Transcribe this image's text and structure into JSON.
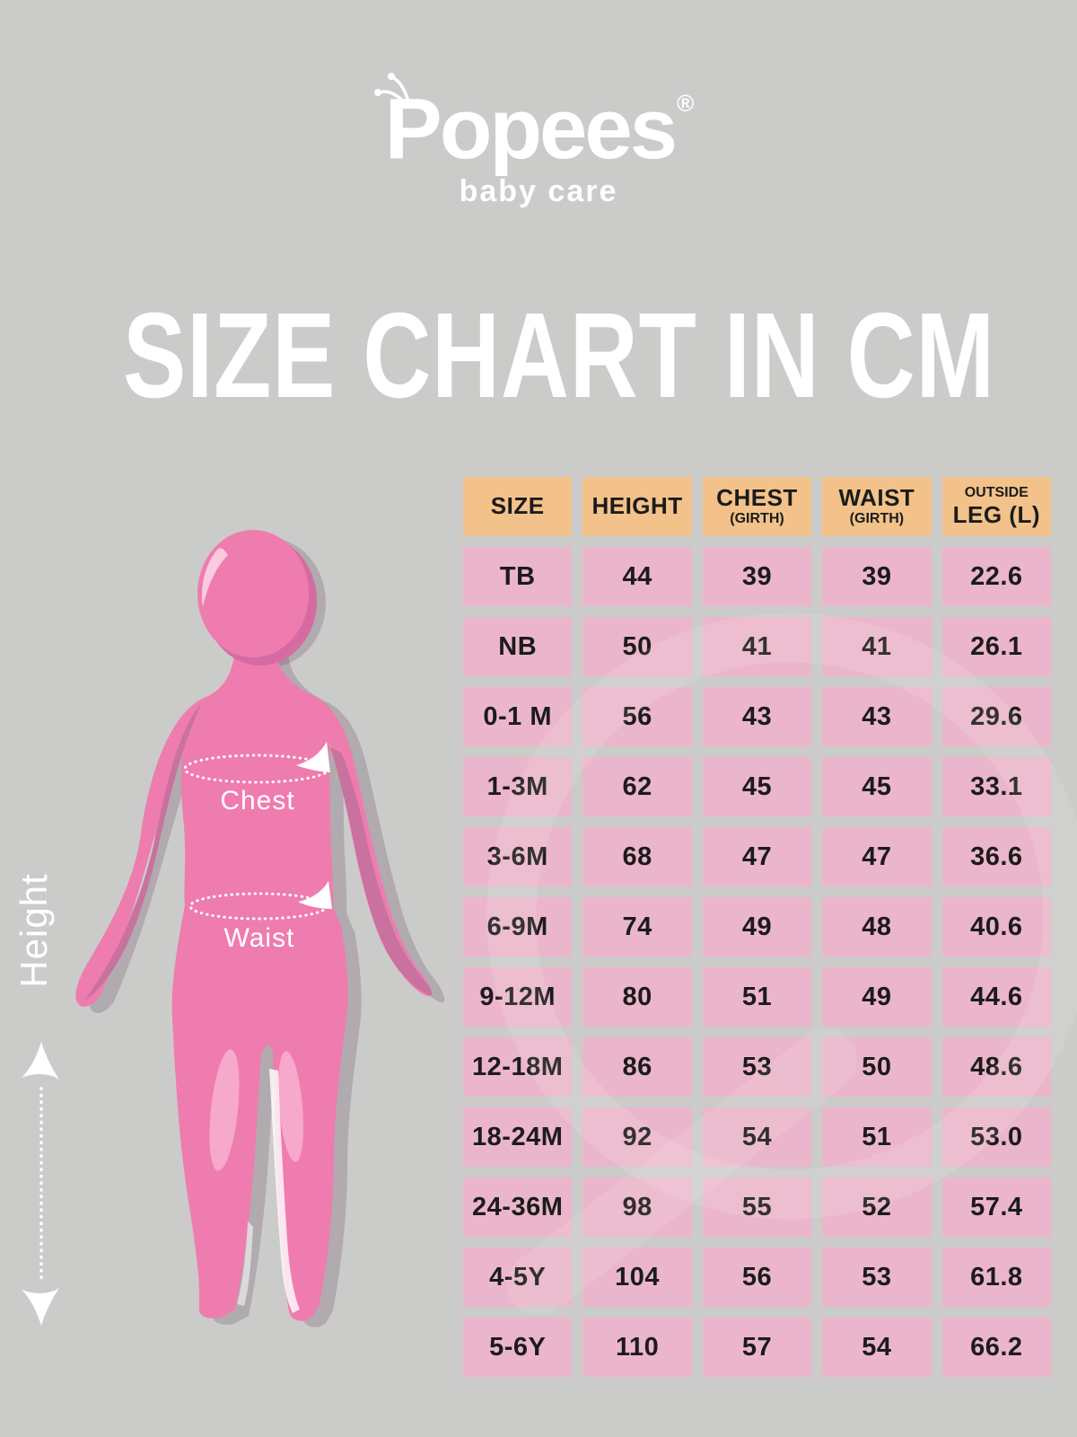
{
  "brand": {
    "name": "Popees",
    "registered": "®",
    "tagline": "baby care"
  },
  "title": "SIZE CHART IN CM",
  "figure": {
    "height_label": "Height",
    "chest_label": "Chest",
    "waist_label": "Waist"
  },
  "table": {
    "columns": [
      {
        "main": "SIZE"
      },
      {
        "main": "HEIGHT"
      },
      {
        "main": "CHEST",
        "sub": "(GIRTH)"
      },
      {
        "main": "WAIST",
        "sub": "(GIRTH)"
      },
      {
        "pre": "OUTSIDE",
        "main": "LEG (L)"
      }
    ],
    "rows": [
      [
        "TB",
        "44",
        "39",
        "39",
        "22.6"
      ],
      [
        "NB",
        "50",
        "41",
        "41",
        "26.1"
      ],
      [
        "0-1 M",
        "56",
        "43",
        "43",
        "29.6"
      ],
      [
        "1-3M",
        "62",
        "45",
        "45",
        "33.1"
      ],
      [
        "3-6M",
        "68",
        "47",
        "47",
        "36.6"
      ],
      [
        "6-9M",
        "74",
        "49",
        "48",
        "40.6"
      ],
      [
        "9-12M",
        "80",
        "51",
        "49",
        "44.6"
      ],
      [
        "12-18M",
        "86",
        "53",
        "50",
        "48.6"
      ],
      [
        "18-24M",
        "92",
        "54",
        "51",
        "53.0"
      ],
      [
        "24-36M",
        "98",
        "55",
        "52",
        "57.4"
      ],
      [
        "4-5Y",
        "104",
        "56",
        "53",
        "61.8"
      ],
      [
        "5-6Y",
        "110",
        "57",
        "54",
        "66.2"
      ]
    ]
  },
  "colors": {
    "background": "#cbcbca",
    "header_bg": "#f2c28a",
    "row_bg": "#ebb6cb",
    "text_dark": "#1b1b1b",
    "white": "#ffffff",
    "figure_pink": "#ef7cae",
    "figure_shadow": "#c9719f",
    "figure_highlight": "#f6a9cb"
  }
}
